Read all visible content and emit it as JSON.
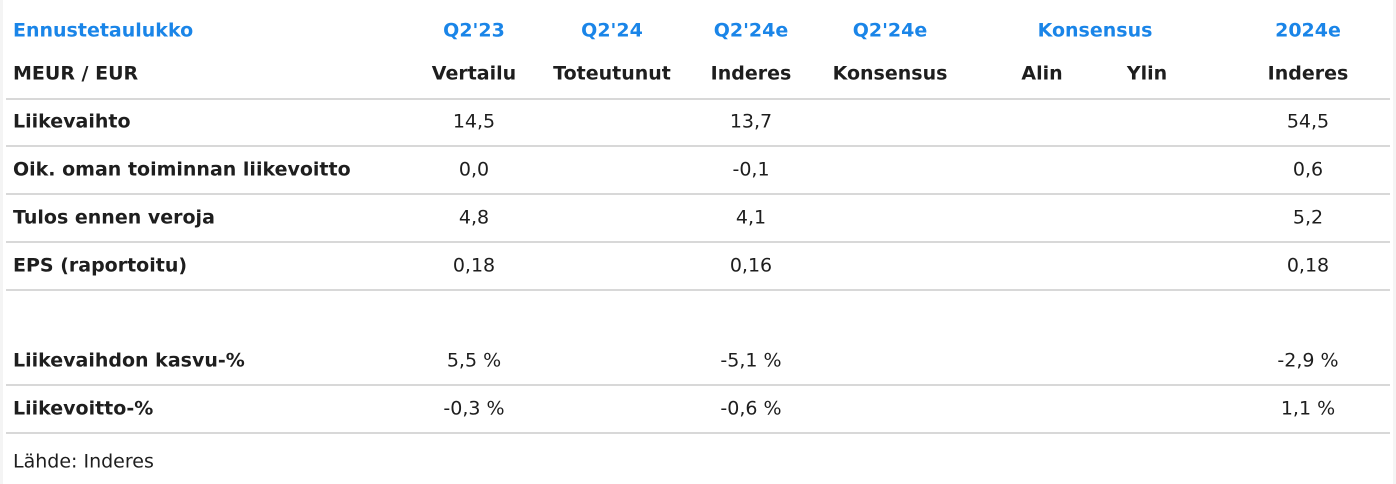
{
  "table": {
    "header_top": [
      "Ennustetaulukko",
      "Q2'23",
      "Q2'24",
      "Q2'24e",
      "Q2'24e",
      "Konsensus",
      "2024e"
    ],
    "header_sub": [
      "MEUR / EUR",
      "Vertailu",
      "Toteutunut",
      "Inderes",
      "Konsensus",
      "Alin",
      "Ylin",
      "Inderes"
    ],
    "sections": [
      [
        [
          "Liikevaihto",
          "14,5",
          null,
          "13,7",
          null,
          null,
          null,
          "54,5"
        ],
        [
          "Oik. oman toiminnan liikevoitto",
          "0,0",
          null,
          "-0,1",
          null,
          null,
          null,
          "0,6"
        ],
        [
          "Tulos ennen veroja",
          "4,8",
          null,
          "4,1",
          null,
          null,
          null,
          "5,2"
        ],
        [
          "EPS (raportoitu)",
          "0,18",
          null,
          "0,16",
          null,
          null,
          null,
          "0,18"
        ]
      ],
      [
        [
          "Liikevaihdon kasvu-%",
          "5,5 %",
          null,
          "-5,1 %",
          null,
          null,
          null,
          "-2,9 %"
        ],
        [
          "Liikevoitto-%",
          "-0,3 %",
          null,
          "-0,6 %",
          null,
          null,
          null,
          "1,1 %"
        ]
      ]
    ],
    "source": "Lähde: Inderes"
  }
}
